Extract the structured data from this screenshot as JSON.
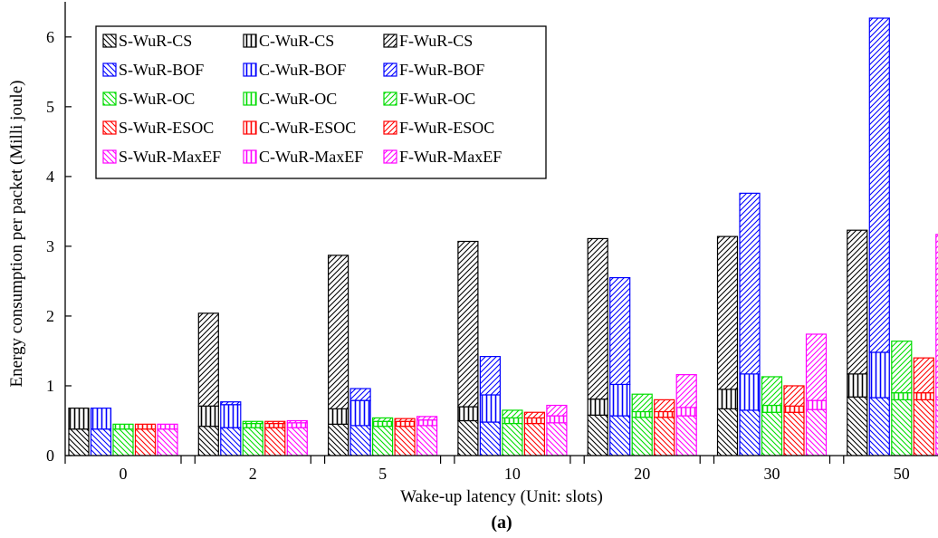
{
  "chart_data": {
    "type": "bar",
    "stacked": true,
    "xlabel": "Wake-up latency (Unit: slots)",
    "ylabel": "Energy consumption per packet (Milli joule)",
    "caption": "(a)",
    "categories": [
      "0",
      "2",
      "5",
      "10",
      "20",
      "30",
      "50"
    ],
    "ylim": [
      0,
      6.4
    ],
    "yticks": [
      "0",
      "1",
      "2",
      "3",
      "4",
      "5",
      "6"
    ],
    "grid": false,
    "legend_position": "top-left",
    "components": [
      "S",
      "C",
      "F"
    ],
    "series": [
      {
        "name": "WuR-CS",
        "color": "#000000",
        "S": [
          0.38,
          0.42,
          0.45,
          0.5,
          0.58,
          0.67,
          0.84
        ],
        "C": [
          0.3,
          0.29,
          0.22,
          0.2,
          0.23,
          0.28,
          0.33
        ],
        "F": [
          0.0,
          1.33,
          2.2,
          2.37,
          2.3,
          2.19,
          2.06
        ]
      },
      {
        "name": "WuR-BOF",
        "color": "#0000ff",
        "S": [
          0.38,
          0.4,
          0.43,
          0.48,
          0.57,
          0.65,
          0.83
        ],
        "C": [
          0.3,
          0.33,
          0.36,
          0.39,
          0.45,
          0.52,
          0.65
        ],
        "F": [
          0.0,
          0.04,
          0.17,
          0.55,
          1.53,
          2.59,
          4.79
        ]
      },
      {
        "name": "WuR-OC",
        "color": "#00dd00",
        "S": [
          0.38,
          0.4,
          0.42,
          0.46,
          0.55,
          0.62,
          0.8
        ],
        "C": [
          0.07,
          0.06,
          0.07,
          0.08,
          0.08,
          0.1,
          0.1
        ],
        "F": [
          0.0,
          0.03,
          0.05,
          0.11,
          0.25,
          0.41,
          0.74
        ]
      },
      {
        "name": "WuR-ESOC",
        "color": "#ff0000",
        "S": [
          0.38,
          0.4,
          0.42,
          0.46,
          0.55,
          0.62,
          0.8
        ],
        "C": [
          0.07,
          0.06,
          0.07,
          0.08,
          0.08,
          0.09,
          0.1
        ],
        "F": [
          0.0,
          0.03,
          0.04,
          0.08,
          0.17,
          0.29,
          0.5
        ]
      },
      {
        "name": "WuR-MaxEF",
        "color": "#ff00ff",
        "S": [
          0.38,
          0.4,
          0.43,
          0.47,
          0.57,
          0.66,
          0.84
        ],
        "C": [
          0.07,
          0.07,
          0.08,
          0.1,
          0.12,
          0.13,
          0.14
        ],
        "F": [
          0.0,
          0.03,
          0.05,
          0.15,
          0.47,
          0.95,
          2.19
        ]
      }
    ],
    "legend": [
      [
        "S-WuR-CS",
        "C-WuR-CS",
        "F-WuR-CS"
      ],
      [
        "S-WuR-BOF",
        "C-WuR-BOF",
        "F-WuR-BOF"
      ],
      [
        "S-WuR-OC",
        "C-WuR-OC",
        "F-WuR-OC"
      ],
      [
        "S-WuR-ESOC",
        "C-WuR-ESOC",
        "F-WuR-ESOC"
      ],
      [
        "S-WuR-MaxEF",
        "C-WuR-MaxEF",
        "F-WuR-MaxEF"
      ]
    ]
  }
}
